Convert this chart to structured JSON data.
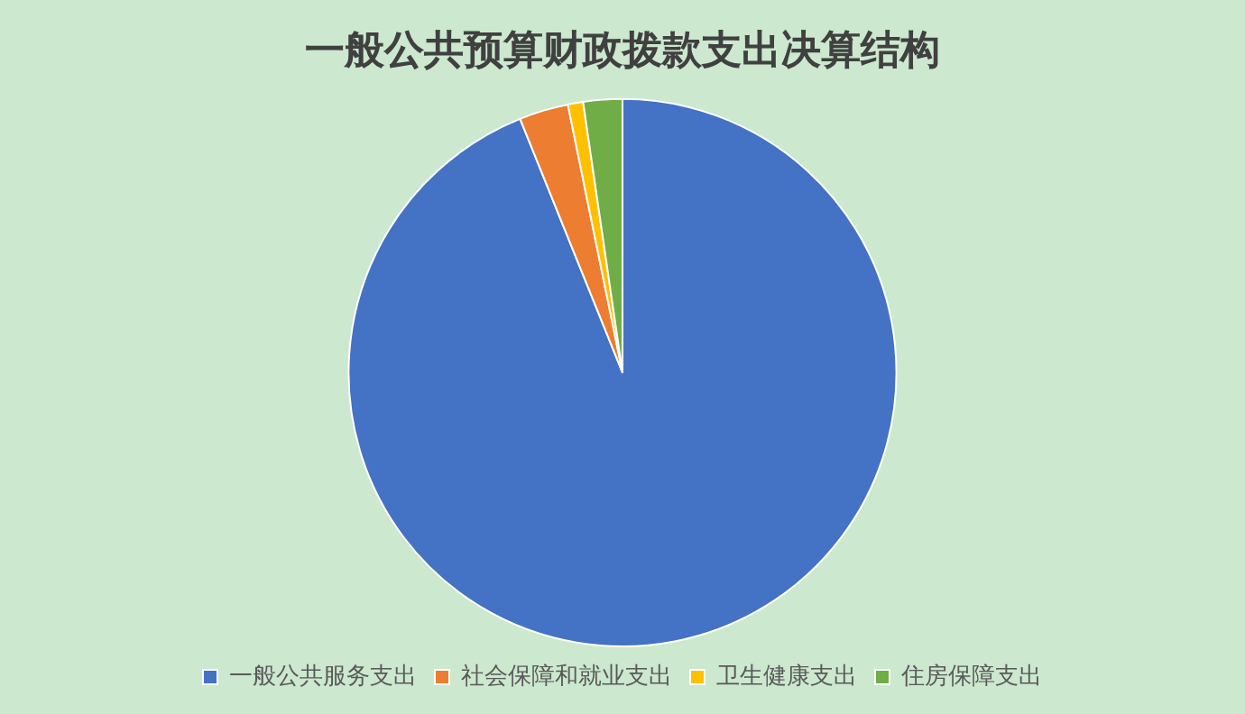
{
  "chart_data": {
    "type": "pie",
    "title": "一般公共预算财政拨款支出决算结构",
    "categories": [
      "一般公共服务支出",
      "社会保障和就业支出",
      "卫生健康支出",
      "住房保障支出"
    ],
    "values": [
      93.9,
      2.9,
      0.9,
      2.3
    ],
    "colors": [
      "#4472c4",
      "#ed7d31",
      "#ffc000",
      "#70ad47"
    ],
    "legend": "bottom"
  }
}
